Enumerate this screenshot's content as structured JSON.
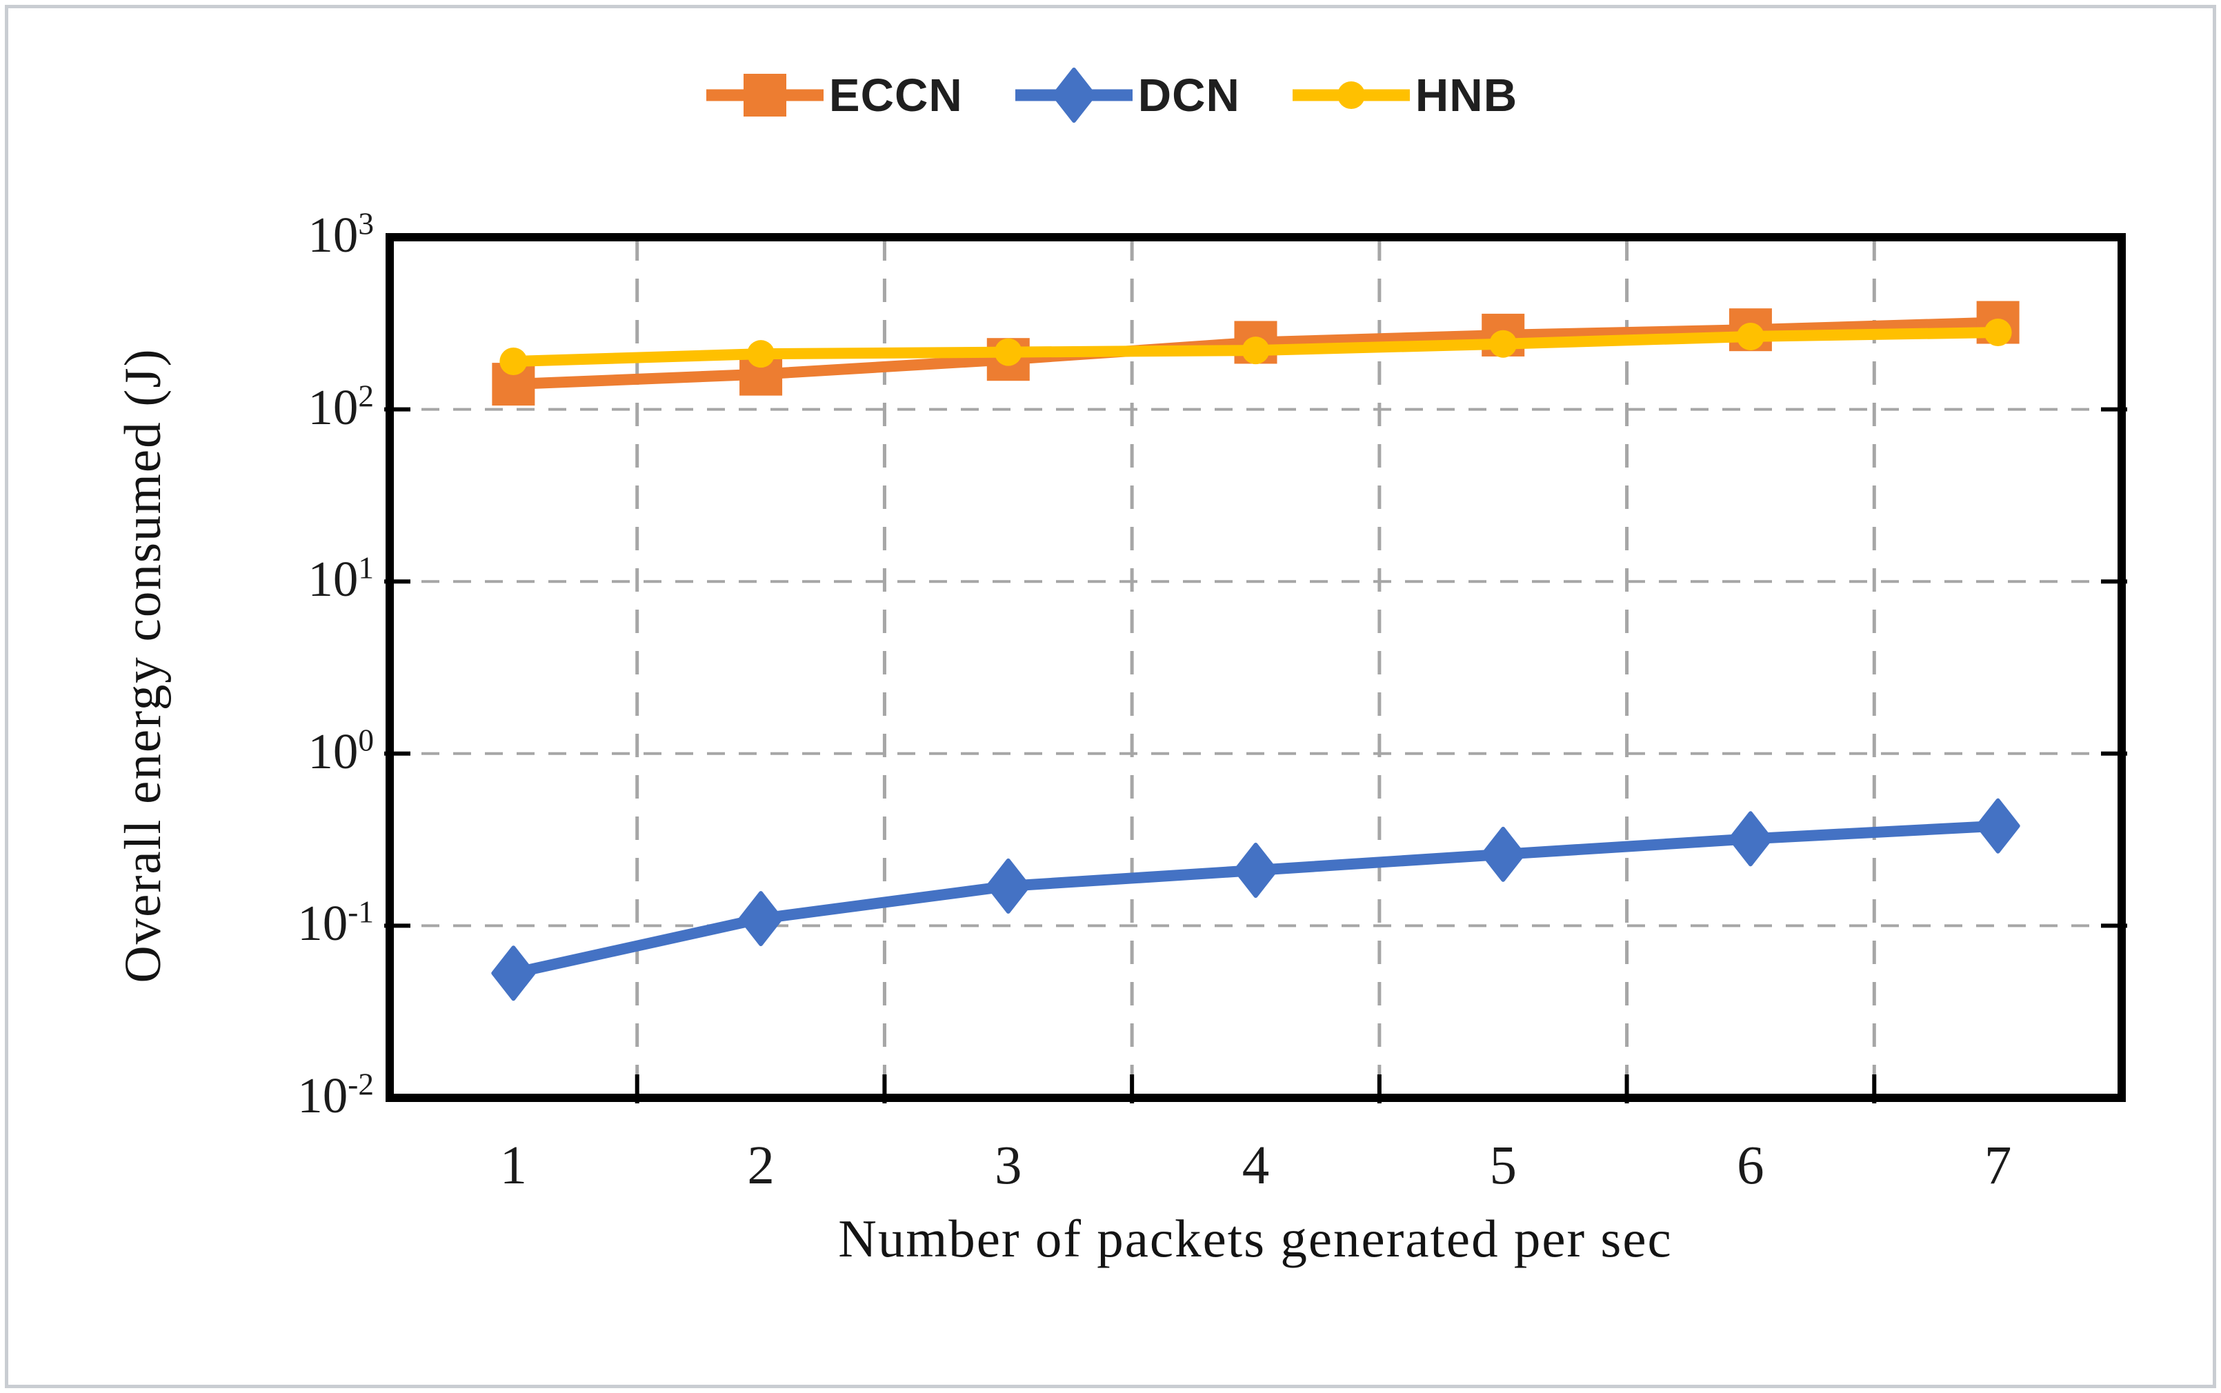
{
  "figure": {
    "background": "#ffffff",
    "border_color": "#c9cdd2"
  },
  "chart_data": {
    "type": "line",
    "x": [
      1,
      2,
      3,
      4,
      5,
      6,
      7
    ],
    "xlabel": "Number of packets generated per sec",
    "ylabel": "Overall energy consumed (J)",
    "y_scale": "log",
    "ylim": [
      0.01,
      1000
    ],
    "y_tick_exponents": [
      3,
      2,
      1,
      0,
      -1,
      -2
    ],
    "grid": "dashed",
    "grid_color": "#a6a6a6",
    "axis_color": "#000000",
    "text_color": "#1b1b1b",
    "legend_position": "top-center",
    "series": [
      {
        "name": "ECCN",
        "color": "#ED7D31",
        "marker": "square",
        "values": [
          140,
          160,
          195,
          245,
          270,
          290,
          320
        ]
      },
      {
        "name": "DCN",
        "color": "#4472C4",
        "marker": "diamond",
        "values": [
          0.053,
          0.11,
          0.17,
          0.21,
          0.26,
          0.32,
          0.38
        ]
      },
      {
        "name": "HNB",
        "color": "#FFC000",
        "marker": "circle",
        "values": [
          190,
          210,
          215,
          220,
          240,
          265,
          280
        ]
      }
    ]
  }
}
